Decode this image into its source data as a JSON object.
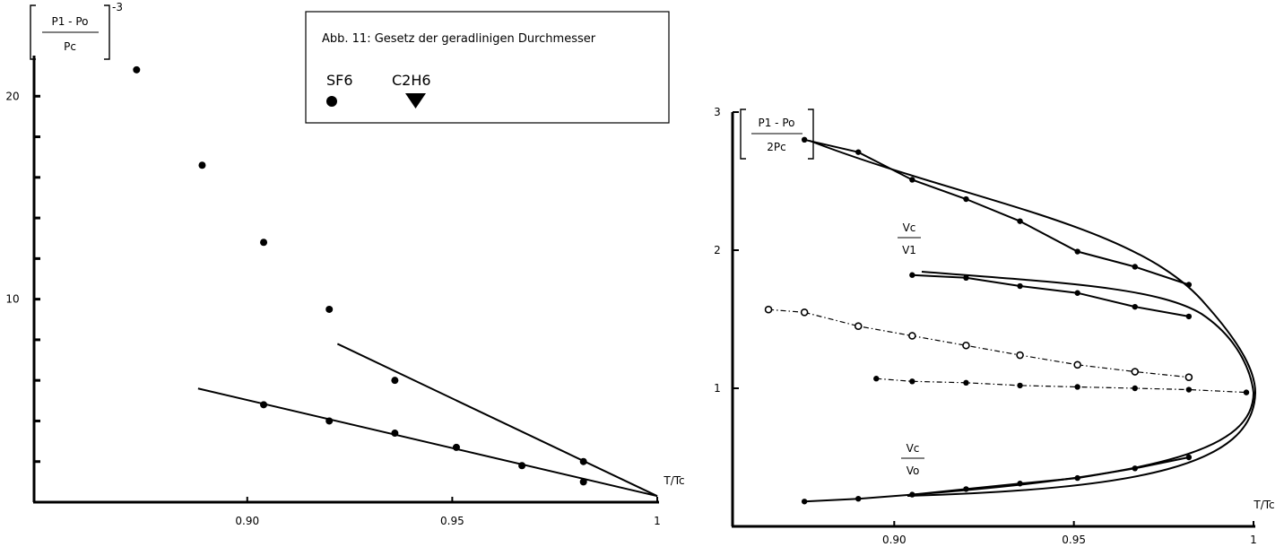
{
  "chart_data": [
    {
      "type": "scatter",
      "panel": "left",
      "xlabel": "T/Tc",
      "ylabel_numerator": "P1 - Po",
      "ylabel_denominator": "Pc",
      "ylabel_exponent": "-3",
      "xlim": [
        0.848,
        1.0
      ],
      "ylim": [
        0,
        22
      ],
      "x_ticks": [
        "0.90",
        "0.95",
        "1"
      ],
      "y_ticks": [
        "10",
        "20"
      ],
      "points": [
        {
          "x": 0.873,
          "y": 21.3
        },
        {
          "x": 0.889,
          "y": 16.6
        },
        {
          "x": 0.904,
          "y": 12.8
        },
        {
          "x": 0.92,
          "y": 9.5
        },
        {
          "x": 0.904,
          "y": 4.8
        },
        {
          "x": 0.92,
          "y": 4.0
        },
        {
          "x": 0.936,
          "y": 3.4
        },
        {
          "x": 0.951,
          "y": 2.7
        },
        {
          "x": 0.967,
          "y": 1.8
        },
        {
          "x": 0.982,
          "y": 1.0
        },
        {
          "x": 0.936,
          "y": 6.0
        },
        {
          "x": 0.982,
          "y": 2.0
        }
      ],
      "lines": [
        {
          "points": [
            {
              "x": 0.888,
              "y": 5.6
            },
            {
              "x": 1.0,
              "y": 0.3
            }
          ]
        },
        {
          "points": [
            {
              "x": 0.922,
              "y": 7.8
            },
            {
              "x": 1.0,
              "y": 0.3
            }
          ]
        }
      ],
      "legend": {
        "title": "Abb. 11: Gesetz der geradlinigen Durchmesser",
        "entries": [
          {
            "label": "SF6",
            "marker": "circle"
          },
          {
            "label": "C2H6",
            "marker": "triangle-down"
          }
        ]
      }
    },
    {
      "type": "line",
      "panel": "right",
      "xlabel": "T/Tc",
      "ylabel_numerator": "P1 - Po",
      "ylabel_denominator": "2Pc",
      "xlim": [
        0.855,
        1.0
      ],
      "ylim": [
        0,
        3
      ],
      "x_ticks": [
        "0.90",
        "0.95",
        "1"
      ],
      "y_ticks": [
        "1",
        "2",
        "3"
      ],
      "curve_labels": [
        {
          "numerator": "Vc",
          "denominator": "V1"
        },
        {
          "numerator": "Vc",
          "denominator": "Vo"
        }
      ],
      "series": [
        {
          "style": "solid",
          "points": [
            {
              "x": 0.875,
              "y": 2.8
            },
            {
              "x": 0.89,
              "y": 2.71
            },
            {
              "x": 0.905,
              "y": 2.51
            },
            {
              "x": 0.92,
              "y": 2.37
            },
            {
              "x": 0.935,
              "y": 2.21
            },
            {
              "x": 0.951,
              "y": 1.99
            },
            {
              "x": 0.967,
              "y": 1.88
            },
            {
              "x": 0.982,
              "y": 1.75
            }
          ]
        },
        {
          "style": "solid",
          "points": [
            {
              "x": 0.905,
              "y": 1.82
            },
            {
              "x": 0.92,
              "y": 1.8
            },
            {
              "x": 0.935,
              "y": 1.74
            },
            {
              "x": 0.951,
              "y": 1.69
            },
            {
              "x": 0.967,
              "y": 1.59
            },
            {
              "x": 0.982,
              "y": 1.52
            }
          ]
        },
        {
          "style": "dashdot",
          "marker": "open-circle",
          "points": [
            {
              "x": 0.865,
              "y": 1.57
            },
            {
              "x": 0.875,
              "y": 1.55
            },
            {
              "x": 0.89,
              "y": 1.45
            },
            {
              "x": 0.905,
              "y": 1.38
            },
            {
              "x": 0.92,
              "y": 1.31
            },
            {
              "x": 0.935,
              "y": 1.24
            },
            {
              "x": 0.951,
              "y": 1.17
            },
            {
              "x": 0.967,
              "y": 1.12
            },
            {
              "x": 0.982,
              "y": 1.08
            }
          ]
        },
        {
          "style": "dashdot",
          "points": [
            {
              "x": 0.895,
              "y": 1.07
            },
            {
              "x": 0.905,
              "y": 1.05
            },
            {
              "x": 0.92,
              "y": 1.04
            },
            {
              "x": 0.935,
              "y": 1.02
            },
            {
              "x": 0.951,
              "y": 1.01
            },
            {
              "x": 0.967,
              "y": 1.0
            },
            {
              "x": 0.982,
              "y": 0.99
            },
            {
              "x": 0.998,
              "y": 0.97
            }
          ]
        },
        {
          "style": "solid",
          "points": [
            {
              "x": 0.875,
              "y": 0.18
            },
            {
              "x": 0.89,
              "y": 0.2
            },
            {
              "x": 0.905,
              "y": 0.23
            },
            {
              "x": 0.92,
              "y": 0.27
            },
            {
              "x": 0.935,
              "y": 0.31
            },
            {
              "x": 0.951,
              "y": 0.35
            },
            {
              "x": 0.967,
              "y": 0.42
            },
            {
              "x": 0.982,
              "y": 0.5
            }
          ]
        }
      ]
    }
  ]
}
